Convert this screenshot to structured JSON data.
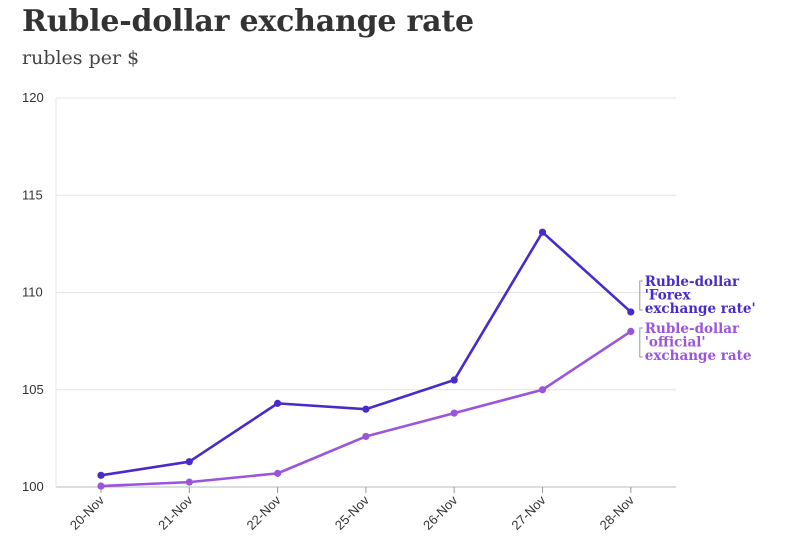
{
  "title": "Ruble-dollar exchange rate",
  "subtitle": "rubles per $",
  "chart_data": {
    "type": "line",
    "categories": [
      "20-Nov",
      "21-Nov",
      "22-Nov",
      "25-Nov",
      "26-Nov",
      "27-Nov",
      "28-Nov"
    ],
    "ylim": [
      100,
      120
    ],
    "yticks": [
      100,
      105,
      110,
      115,
      120
    ],
    "grid": true,
    "series": [
      {
        "name": "Ruble-dollar 'Forex exchange rate'",
        "label_lines": [
          "Ruble-dollar",
          "'Forex",
          "exchange rate'"
        ],
        "color": "#4a2bc9",
        "values": [
          100.6,
          101.3,
          104.3,
          104.0,
          105.5,
          113.1,
          109.0
        ]
      },
      {
        "name": "Ruble-dollar 'official' exchange rate",
        "label_lines": [
          "Ruble-dollar",
          "'official'",
          "exchange rate"
        ],
        "color": "#9a55dc",
        "values": [
          100.05,
          100.25,
          100.7,
          102.6,
          103.8,
          105.0,
          108.0
        ]
      }
    ]
  }
}
